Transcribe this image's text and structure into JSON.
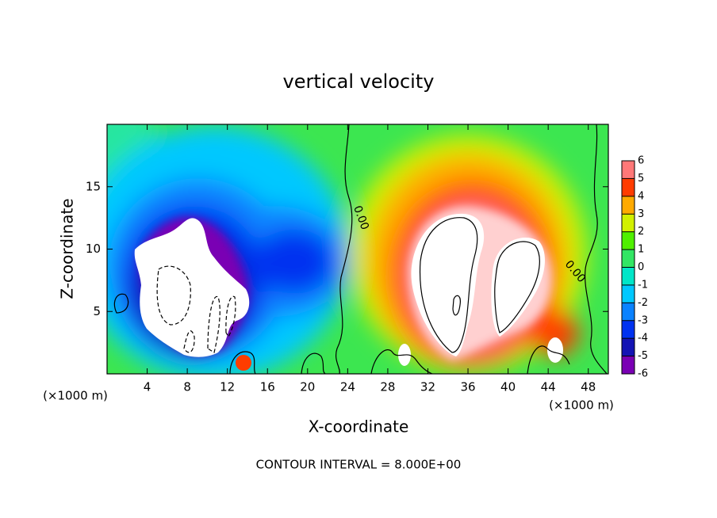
{
  "chart_data": {
    "type": "contour",
    "title": "vertical velocity",
    "x_label": "X-coordinate",
    "y_label": "Z-coordinate",
    "x_unit_label": "(×1000 m)",
    "xlim": [
      0,
      50
    ],
    "xticks": [
      4,
      8,
      12,
      16,
      20,
      24,
      28,
      32,
      36,
      40,
      44,
      48
    ],
    "ylim": [
      0,
      20
    ],
    "yticks": [
      5,
      10,
      15
    ],
    "contour_labels": [
      "0.00",
      "0.00"
    ],
    "footnote": "CONTOUR INTERVAL = 8.000E+00",
    "colorbar": {
      "levels": [
        -6,
        -5,
        -4,
        -3,
        -2,
        -1,
        0,
        1,
        2,
        3,
        4,
        5,
        6
      ],
      "colors": [
        "#7a00b4",
        "#1414b4",
        "#0032f0",
        "#0a82ff",
        "#00c8ff",
        "#00e6c8",
        "#32e664",
        "#50f000",
        "#d2f000",
        "#ffaa00",
        "#ff3c00",
        "#ff7878"
      ]
    }
  }
}
